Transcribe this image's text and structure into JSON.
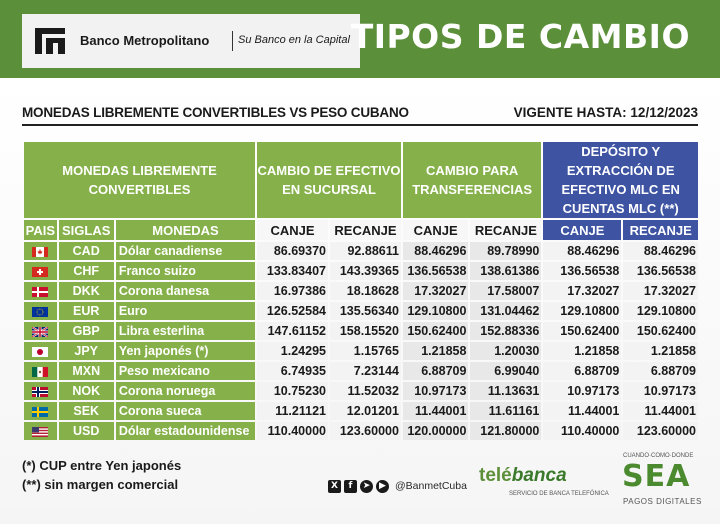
{
  "header": {
    "bank_name": "Banco Metropolitano",
    "slogan": "Su Banco en la Capital",
    "title": "TIPOS DE CAMBIO"
  },
  "subheader": {
    "left": "MONEDAS LIBREMENTE CONVERTIBLES VS PESO CUBANO",
    "right": "VIGENTE HASTA: 12/12/2023"
  },
  "table": {
    "group_headers": {
      "monedas": "MONEDAS LIBREMENTE CONVERTIBLES",
      "efectivo": "CAMBIO DE EFECTIVO EN SUCURSAL",
      "transferencias": "CAMBIO PARA TRANSFERENCIAS",
      "mlc": "DEPÓSITO Y EXTRACCIÓN DE EFECTIVO MLC EN CUENTAS MLC (**)"
    },
    "sub_headers": {
      "pais": "PAIS",
      "siglas": "SIGLAS",
      "monedas": "MONEDAS",
      "canje": "CANJE",
      "recanje": "RECANJE"
    },
    "rows": [
      {
        "flag": "canada-flag",
        "code": "CAD",
        "name": "Dólar canadiense",
        "ef_canje": "86.69370",
        "ef_recanje": "92.88611",
        "tr_canje": "88.46296",
        "tr_recanje": "89.78990",
        "mlc_canje": "88.46296",
        "mlc_recanje": "88.46296"
      },
      {
        "flag": "switzerland-flag",
        "code": "CHF",
        "name": "Franco suizo",
        "ef_canje": "133.83407",
        "ef_recanje": "143.39365",
        "tr_canje": "136.56538",
        "tr_recanje": "138.61386",
        "mlc_canje": "136.56538",
        "mlc_recanje": "136.56538"
      },
      {
        "flag": "denmark-flag",
        "code": "DKK",
        "name": "Corona danesa",
        "ef_canje": "16.97386",
        "ef_recanje": "18.18628",
        "tr_canje": "17.32027",
        "tr_recanje": "17.58007",
        "mlc_canje": "17.32027",
        "mlc_recanje": "17.32027"
      },
      {
        "flag": "eu-flag",
        "code": "EUR",
        "name": "Euro",
        "ef_canje": "126.52584",
        "ef_recanje": "135.56340",
        "tr_canje": "129.10800",
        "tr_recanje": "131.04462",
        "mlc_canje": "129.10800",
        "mlc_recanje": "129.10800"
      },
      {
        "flag": "uk-flag",
        "code": "GBP",
        "name": "Libra esterlina",
        "ef_canje": "147.61152",
        "ef_recanje": "158.15520",
        "tr_canje": "150.62400",
        "tr_recanje": "152.88336",
        "mlc_canje": "150.62400",
        "mlc_recanje": "150.62400"
      },
      {
        "flag": "japan-flag",
        "code": "JPY",
        "name": "Yen japonés (*)",
        "ef_canje": "1.24295",
        "ef_recanje": "1.15765",
        "tr_canje": "1.21858",
        "tr_recanje": "1.20030",
        "mlc_canje": "1.21858",
        "mlc_recanje": "1.21858"
      },
      {
        "flag": "mexico-flag",
        "code": "MXN",
        "name": "Peso mexicano",
        "ef_canje": "6.74935",
        "ef_recanje": "7.23144",
        "tr_canje": "6.88709",
        "tr_recanje": "6.99040",
        "mlc_canje": "6.88709",
        "mlc_recanje": "6.88709"
      },
      {
        "flag": "norway-flag",
        "code": "NOK",
        "name": "Corona noruega",
        "ef_canje": "10.75230",
        "ef_recanje": "11.52032",
        "tr_canje": "10.97173",
        "tr_recanje": "11.13631",
        "mlc_canje": "10.97173",
        "mlc_recanje": "10.97173"
      },
      {
        "flag": "sweden-flag",
        "code": "SEK",
        "name": "Corona sueca",
        "ef_canje": "11.21121",
        "ef_recanje": "12.01201",
        "tr_canje": "11.44001",
        "tr_recanje": "11.61161",
        "mlc_canje": "11.44001",
        "mlc_recanje": "11.44001"
      },
      {
        "flag": "usa-flag",
        "code": "USD",
        "name": "Dólar estadounidense",
        "ef_canje": "110.40000",
        "ef_recanje": "123.60000",
        "tr_canje": "120.00000",
        "tr_recanje": "121.80000",
        "mlc_canje": "110.40000",
        "mlc_recanje": "123.60000"
      }
    ]
  },
  "notes": {
    "note1": "(*) CUP entre Yen japonés",
    "note2": "(**) sin margen comercial"
  },
  "footer": {
    "social_icons": [
      "x-icon",
      "facebook-icon",
      "telegram-icon",
      "youtube-icon"
    ],
    "handle": "@BanmetCuba",
    "telebanca_a": "telé",
    "telebanca_b": "banca",
    "telebanca_sub": "SERVICIO DE BANCA TELEFÓNICA",
    "sea_top": "CUANDO·COMO·DONDE",
    "sea_word": "SEA",
    "sea_bottom": "PAGOS DIGITALES"
  },
  "colors": {
    "header_green": "#5c8f3a",
    "table_green": "#86b14a",
    "mlc_blue": "#3e54a3"
  }
}
